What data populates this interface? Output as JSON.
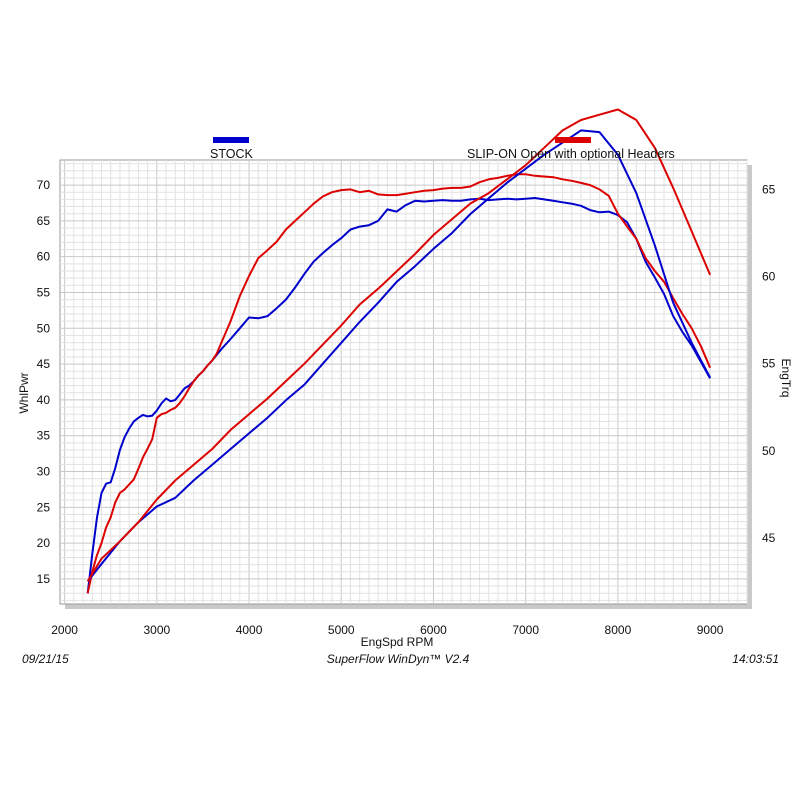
{
  "chart_data": {
    "type": "line",
    "xlabel": "EngSpd  RPM",
    "ylabel": "WhlPwr",
    "y2label": "EngTrq",
    "xlim": [
      1950,
      9400
    ],
    "ylim": [
      11.5,
      73.5
    ],
    "y2lim": [
      41.2,
      66.7
    ],
    "x_ticks": [
      2000,
      3000,
      4000,
      5000,
      6000,
      7000,
      8000,
      9000
    ],
    "y_ticks": [
      15,
      20,
      25,
      30,
      35,
      40,
      45,
      50,
      55,
      60,
      65,
      70
    ],
    "y2_ticks": [
      45,
      50,
      55,
      60,
      65
    ],
    "grid": true,
    "legend_position": "top",
    "series": [
      {
        "name": "STOCK",
        "color": "#0000cc",
        "axis": "left",
        "measure": "power",
        "x": [
          2250,
          2300,
          2350,
          2400,
          2450,
          2500,
          2550,
          2600,
          2650,
          2700,
          2750,
          2800,
          2850,
          2900,
          2950,
          3000,
          3050,
          3100,
          3150,
          3200,
          3250,
          3300,
          3350,
          3400,
          3450,
          3500,
          3550,
          3600,
          3650,
          3700,
          3800,
          3900,
          4000,
          4100,
          4200,
          4300,
          4400,
          4500,
          4600,
          4700,
          4800,
          4900,
          5000,
          5100,
          5200,
          5300,
          5400,
          5500,
          5600,
          5700,
          5800,
          5900,
          6000,
          6100,
          6200,
          6300,
          6400,
          6500,
          6600,
          6700,
          6800,
          6900,
          7000,
          7100,
          7200,
          7300,
          7400,
          7500,
          7600,
          7700,
          7800,
          7900,
          8000,
          8100,
          8200,
          8300,
          8400,
          8500,
          8600,
          8700,
          8800,
          8900,
          9000
        ],
        "y": [
          13.0,
          18.5,
          23.5,
          27.0,
          28.3,
          28.5,
          30.5,
          33.0,
          34.8,
          36.0,
          37.0,
          37.5,
          37.9,
          37.7,
          37.8,
          38.5,
          39.5,
          40.2,
          39.8,
          40.0,
          40.8,
          41.6,
          42.0,
          42.6,
          43.4,
          44.0,
          44.8,
          45.5,
          46.3,
          47.1,
          48.5,
          50.0,
          51.5,
          51.4,
          51.7,
          52.8,
          54.0,
          55.7,
          57.6,
          59.3,
          60.5,
          61.6,
          62.6,
          63.8,
          64.2,
          64.4,
          65.0,
          66.6,
          66.3,
          67.2,
          67.8,
          67.7,
          67.8,
          67.9,
          67.8,
          67.8,
          68.0,
          68.1,
          67.9,
          68.0,
          68.1,
          68.0,
          68.1,
          68.2,
          68.0,
          67.8,
          67.6,
          67.4,
          67.1,
          66.5,
          66.2,
          66.3,
          65.8,
          64.8,
          62.5,
          59.3,
          57.1,
          54.8,
          51.7,
          49.5,
          47.6,
          45.3,
          43.0
        ]
      },
      {
        "name": "SLIP-ON Open with optional Headers",
        "color": "#dd0000",
        "axis": "left",
        "measure": "power",
        "x": [
          2250,
          2300,
          2350,
          2400,
          2450,
          2500,
          2550,
          2600,
          2650,
          2700,
          2750,
          2800,
          2850,
          2900,
          2950,
          3000,
          3050,
          3100,
          3150,
          3200,
          3250,
          3300,
          3350,
          3400,
          3450,
          3500,
          3550,
          3600,
          3650,
          3700,
          3800,
          3900,
          4000,
          4100,
          4200,
          4300,
          4400,
          4500,
          4600,
          4700,
          4800,
          4900,
          5000,
          5100,
          5200,
          5300,
          5400,
          5500,
          5600,
          5700,
          5800,
          5900,
          6000,
          6100,
          6200,
          6300,
          6400,
          6500,
          6600,
          6700,
          6800,
          6900,
          7000,
          7100,
          7200,
          7300,
          7400,
          7500,
          7600,
          7700,
          7800,
          7900,
          8000,
          8100,
          8200,
          8300,
          8400,
          8500,
          8600,
          8700,
          8800,
          8900,
          9000
        ],
        "y": [
          13.0,
          16.0,
          18.3,
          20.0,
          22.2,
          23.6,
          25.7,
          27.0,
          27.5,
          28.2,
          28.9,
          30.4,
          32.0,
          33.2,
          34.5,
          37.5,
          38.0,
          38.2,
          38.6,
          38.9,
          39.6,
          40.5,
          41.6,
          42.6,
          43.4,
          44.0,
          44.8,
          45.5,
          46.5,
          48.0,
          51.0,
          54.5,
          57.3,
          59.8,
          60.9,
          62.1,
          63.8,
          65.0,
          66.2,
          67.4,
          68.4,
          69.0,
          69.3,
          69.4,
          69.0,
          69.2,
          68.7,
          68.6,
          68.6,
          68.8,
          69.0,
          69.2,
          69.3,
          69.5,
          69.6,
          69.6,
          69.8,
          70.4,
          70.8,
          71.0,
          71.3,
          71.5,
          71.5,
          71.3,
          71.2,
          71.1,
          70.8,
          70.6,
          70.3,
          70.0,
          69.4,
          68.5,
          66.0,
          64.2,
          62.5,
          59.8,
          58.0,
          56.5,
          54.2,
          52.0,
          50.0,
          47.5,
          44.5
        ]
      },
      {
        "name": "STOCK",
        "color": "#0000cc",
        "axis": "right",
        "measure": "torque",
        "x": [
          2250,
          2400,
          2600,
          2800,
          3000,
          3200,
          3400,
          3600,
          3800,
          4000,
          4200,
          4400,
          4600,
          4800,
          5000,
          5200,
          5400,
          5600,
          5800,
          6000,
          6200,
          6400,
          6600,
          6800,
          7000,
          7200,
          7400,
          7600,
          7800,
          8000,
          8200,
          8400,
          8600,
          8800,
          9000
        ],
        "y": [
          42.5,
          43.5,
          44.8,
          45.9,
          46.8,
          47.3,
          48.3,
          49.2,
          50.1,
          51.0,
          51.9,
          52.9,
          53.8,
          55.0,
          56.2,
          57.4,
          58.5,
          59.7,
          60.6,
          61.6,
          62.5,
          63.6,
          64.5,
          65.4,
          66.2,
          67.0,
          67.7,
          68.4,
          68.3,
          67.0,
          64.8,
          61.8,
          58.5,
          56.2,
          54.2
        ]
      },
      {
        "name": "SLIP-ON Open with optional Headers",
        "color": "#dd0000",
        "axis": "right",
        "measure": "torque",
        "x": [
          2250,
          2400,
          2600,
          2800,
          3000,
          3200,
          3400,
          3600,
          3800,
          4000,
          4200,
          4400,
          4600,
          4800,
          5000,
          5200,
          5400,
          5600,
          5800,
          6000,
          6200,
          6400,
          6600,
          6800,
          7000,
          7200,
          7400,
          7600,
          7800,
          8000,
          8200,
          8400,
          8600,
          8800,
          9000
        ],
        "y": [
          42.5,
          43.8,
          44.8,
          45.9,
          47.2,
          48.3,
          49.2,
          50.1,
          51.2,
          52.1,
          53.0,
          54.0,
          55.0,
          56.1,
          57.2,
          58.4,
          59.3,
          60.3,
          61.3,
          62.4,
          63.3,
          64.2,
          64.8,
          65.6,
          66.4,
          67.4,
          68.4,
          69.0,
          69.3,
          69.6,
          69.0,
          67.4,
          65.1,
          62.6,
          60.1
        ]
      }
    ]
  },
  "legend": {
    "stock": {
      "label": "STOCK",
      "color": "#0000cc"
    },
    "headers": {
      "label": "SLIP-ON Open with optional Headers",
      "color": "#dd0000"
    }
  },
  "footer": {
    "date": "09/21/15",
    "software": "SuperFlow WinDyn™  V2.4",
    "time": "14:03:51"
  }
}
